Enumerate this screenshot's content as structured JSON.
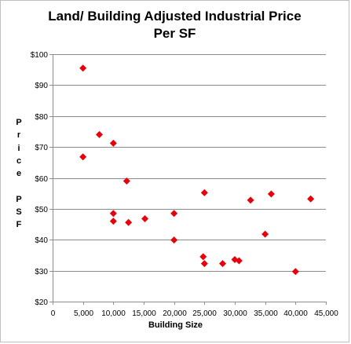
{
  "chart_data": {
    "type": "scatter",
    "title_line1": "Land/ Building Adjusted Industrial Price",
    "title_line2": "Per SF",
    "xlabel": "Building Size",
    "ylabel": "Price PSF",
    "xlim": [
      0,
      45000
    ],
    "ylim": [
      20,
      100
    ],
    "x_ticks": [
      0,
      5000,
      10000,
      15000,
      20000,
      25000,
      30000,
      35000,
      40000,
      45000
    ],
    "x_tick_labels": [
      "0",
      "5,000",
      "10,000",
      "15,000",
      "20,000",
      "25,000",
      "30,000",
      "35,000",
      "40,000",
      "45,000"
    ],
    "y_ticks": [
      20,
      30,
      40,
      50,
      60,
      70,
      80,
      90,
      100
    ],
    "y_tick_labels": [
      "$20",
      "$30",
      "$40",
      "$50",
      "$60",
      "$70",
      "$80",
      "$90",
      "$100"
    ],
    "grid": "horizontal",
    "marker": "diamond",
    "marker_color": "#e8000b",
    "points": [
      {
        "x": 5000,
        "y": 95.5
      },
      {
        "x": 5000,
        "y": 66.8
      },
      {
        "x": 7700,
        "y": 74.0
      },
      {
        "x": 10000,
        "y": 71.2
      },
      {
        "x": 10000,
        "y": 48.5
      },
      {
        "x": 10000,
        "y": 46.0
      },
      {
        "x": 12200,
        "y": 59.0
      },
      {
        "x": 12500,
        "y": 45.6
      },
      {
        "x": 15200,
        "y": 46.8
      },
      {
        "x": 20000,
        "y": 48.5
      },
      {
        "x": 20000,
        "y": 39.9
      },
      {
        "x": 24800,
        "y": 34.5
      },
      {
        "x": 25000,
        "y": 32.3
      },
      {
        "x": 25000,
        "y": 55.2
      },
      {
        "x": 28000,
        "y": 32.3
      },
      {
        "x": 30000,
        "y": 33.6
      },
      {
        "x": 30700,
        "y": 33.2
      },
      {
        "x": 32600,
        "y": 52.8
      },
      {
        "x": 35000,
        "y": 41.8
      },
      {
        "x": 36000,
        "y": 54.8
      },
      {
        "x": 40000,
        "y": 29.7
      },
      {
        "x": 42500,
        "y": 53.2
      }
    ]
  }
}
